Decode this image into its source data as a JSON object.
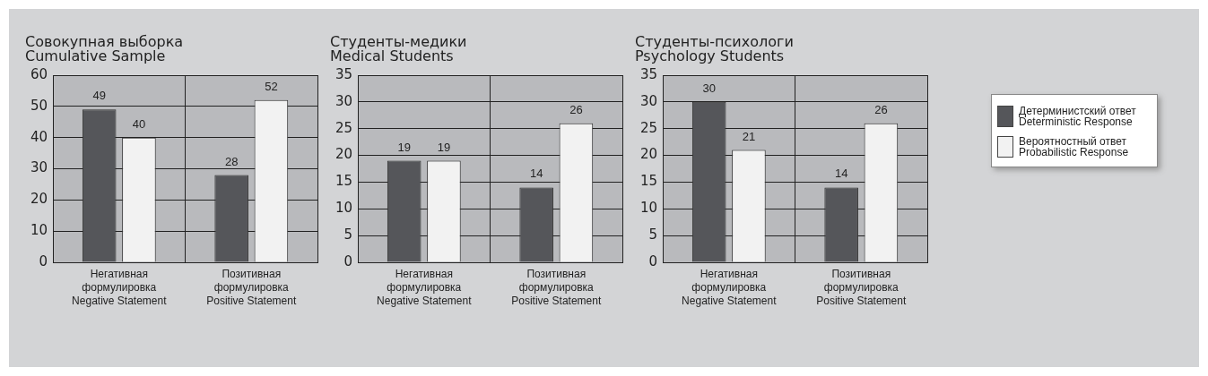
{
  "chart_data": [
    {
      "type": "bar",
      "title": "Совокупная выборка\nCumulative Sample",
      "categories": [
        "Негативная\nформулировка\nNegative Statement",
        "Позитивная\nформулировка\nPositive Statement"
      ],
      "series": [
        {
          "color": "#55565a",
          "values": [
            49,
            28
          ]
        },
        {
          "color": "#f2f2f2",
          "values": [
            40,
            52
          ]
        }
      ],
      "ylim": [
        0,
        60
      ],
      "yticks": [
        0,
        10,
        20,
        30,
        40,
        50,
        60
      ],
      "grid": true,
      "data_labels": true,
      "legend": false
    },
    {
      "type": "bar",
      "title": "Студенты-медики\nMedical Students",
      "categories": [
        "Негативная\nформулировка\nNegative Statement",
        "Позитивная\nформулировка\nPositive Statement"
      ],
      "series": [
        {
          "color": "#55565a",
          "values": [
            19,
            14
          ]
        },
        {
          "color": "#f2f2f2",
          "values": [
            19,
            26
          ]
        }
      ],
      "ylim": [
        0,
        35
      ],
      "yticks": [
        0,
        5,
        10,
        15,
        20,
        25,
        30,
        35
      ],
      "grid": true,
      "data_labels": true,
      "legend": false
    },
    {
      "type": "bar",
      "title": "Студенты-психологи\nPsychology Students",
      "categories": [
        "Негативная\nформулировка\nNegative Statement",
        "Позитивная\nформулировка\nPositive Statement"
      ],
      "series": [
        {
          "name": "Детерминистский ответ\nDeterministic Response",
          "color": "#55565a",
          "values": [
            30,
            14
          ]
        },
        {
          "name": "Вероятностный ответ\nProbabilistic Response",
          "color": "#f2f2f2",
          "values": [
            21,
            26
          ]
        }
      ],
      "ylim": [
        0,
        35
      ],
      "yticks": [
        0,
        5,
        10,
        15,
        20,
        25,
        30,
        35
      ],
      "grid": true,
      "data_labels": true,
      "legend": "right"
    }
  ]
}
